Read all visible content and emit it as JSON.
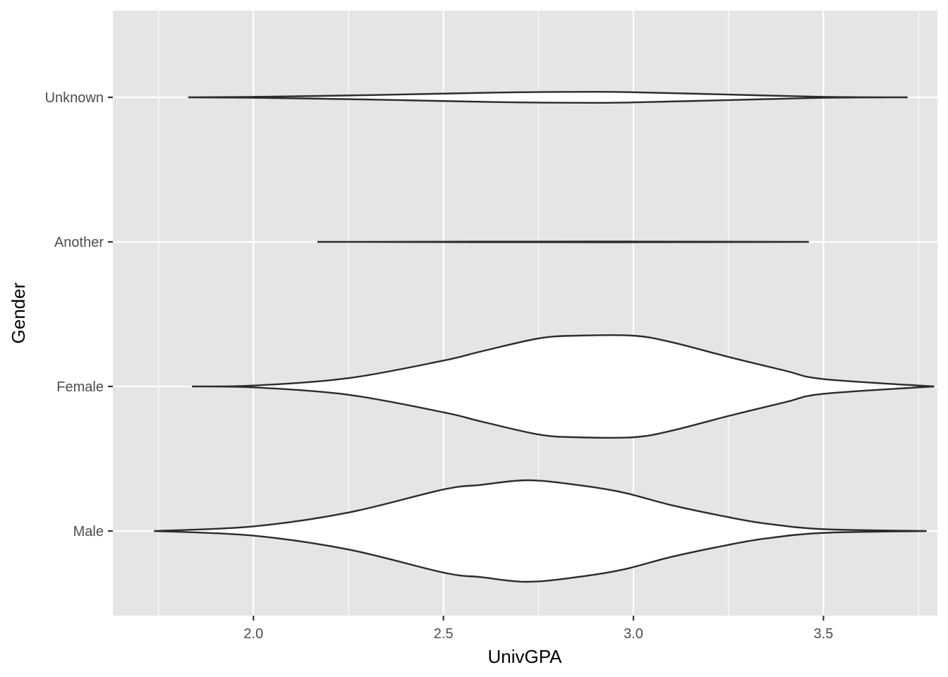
{
  "chart_data": {
    "type": "violin",
    "orientation": "horizontal",
    "xlabel": "UnivGPA",
    "ylabel": "Gender",
    "xlim": [
      1.63,
      3.8
    ],
    "x_ticks": [
      "2.0",
      "2.5",
      "3.0",
      "3.5"
    ],
    "x_tick_values": [
      2.0,
      2.5,
      3.0,
      3.5
    ],
    "x_minor_values": [
      1.75,
      2.25,
      2.75,
      3.25,
      3.75
    ],
    "categories": [
      "Male",
      "Female",
      "Another",
      "Unknown"
    ],
    "grid": true,
    "colors": {
      "panel": "#e5e5e5",
      "grid": "#ffffff",
      "violin_fill": "#ffffff",
      "violin_stroke": "#2b2b2b"
    },
    "series": [
      {
        "category": "Male",
        "density_points": [
          [
            1.74,
            0.0
          ],
          [
            2.0,
            0.05
          ],
          [
            2.25,
            0.2
          ],
          [
            2.5,
            0.45
          ],
          [
            2.6,
            0.5
          ],
          [
            2.72,
            0.55
          ],
          [
            2.85,
            0.5
          ],
          [
            2.97,
            0.42
          ],
          [
            3.1,
            0.28
          ],
          [
            3.25,
            0.15
          ],
          [
            3.35,
            0.08
          ],
          [
            3.5,
            0.02
          ],
          [
            3.77,
            0.0
          ]
        ]
      },
      {
        "category": "Female",
        "density_points": [
          [
            1.84,
            0.0
          ],
          [
            2.0,
            0.01
          ],
          [
            2.25,
            0.09
          ],
          [
            2.5,
            0.28
          ],
          [
            2.6,
            0.38
          ],
          [
            2.75,
            0.52
          ],
          [
            2.85,
            0.55
          ],
          [
            3.0,
            0.55
          ],
          [
            3.1,
            0.48
          ],
          [
            3.25,
            0.32
          ],
          [
            3.4,
            0.17
          ],
          [
            3.5,
            0.08
          ],
          [
            3.79,
            0.0
          ]
        ]
      },
      {
        "category": "Another",
        "density_points": [
          [
            2.17,
            0.0
          ],
          [
            2.9,
            0.004
          ],
          [
            3.46,
            0.0
          ]
        ]
      },
      {
        "category": "Unknown",
        "density_points": [
          [
            1.83,
            0.0
          ],
          [
            2.0,
            0.005
          ],
          [
            2.25,
            0.02
          ],
          [
            2.5,
            0.04
          ],
          [
            2.7,
            0.055
          ],
          [
            2.9,
            0.06
          ],
          [
            3.0,
            0.055
          ],
          [
            3.25,
            0.03
          ],
          [
            3.5,
            0.005
          ],
          [
            3.72,
            0.0
          ]
        ]
      }
    ]
  }
}
